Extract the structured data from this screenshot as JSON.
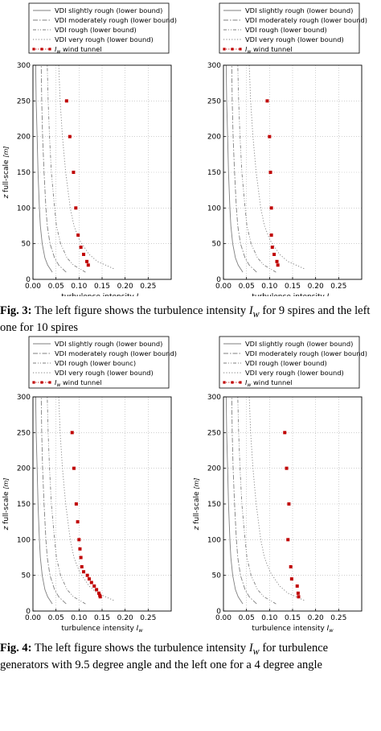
{
  "captions": {
    "fig3": {
      "label": "Fig. 3:",
      "text_a": "The left figure shows the turbulence intensity",
      "symbol": "I",
      "subscript": "w",
      "text_b": "for 9 spires and the left one for 10 spires"
    },
    "fig4": {
      "label": "Fig. 4:",
      "text_a": "The left figure shows the turbulence intensity",
      "symbol": "I",
      "subscript": "w",
      "text_b": "for turbulence generators with 9.5 degree angle and the left one for a 4 degree angle"
    }
  },
  "colors": {
    "vdi": "#7f7f7f",
    "tunnel": "#c00000",
    "grid": "#b0b0b0",
    "axis": "#000000"
  },
  "chart_data": [
    {
      "type": "line",
      "xlabel": "turbulence intensity I_w",
      "ylabel": "z full-scale [m]",
      "xlim": [
        0.0,
        0.3
      ],
      "ylim": [
        0,
        300
      ],
      "xticks": [
        "0.00",
        "0.05",
        "0.10",
        "0.15",
        "0.20",
        "0.25"
      ],
      "yticks": [
        "0",
        "50",
        "100",
        "150",
        "200",
        "250",
        "300"
      ],
      "grid": true,
      "legend_position": "top",
      "legend": [
        "VDI slightly rough (lower bound)",
        "VDI moderately rough (lower bound)",
        "VDI rough (lower bound)",
        "VDI very rough (lower bound)",
        "I_w wind tunnel"
      ],
      "series": [
        {
          "name": "VDI slightly rough (lower bound)",
          "style": "solid",
          "x": [
            0.042,
            0.032,
            0.026,
            0.02,
            0.016,
            0.014,
            0.011,
            0.009,
            0.007,
            0.006
          ],
          "y": [
            10,
            20,
            30,
            50,
            75,
            100,
            150,
            200,
            250,
            300
          ]
        },
        {
          "name": "VDI moderately rough (lower bound)",
          "style": "dashdot",
          "x": [
            0.072,
            0.056,
            0.047,
            0.037,
            0.031,
            0.028,
            0.024,
            0.021,
            0.019,
            0.018
          ],
          "y": [
            10,
            20,
            30,
            50,
            75,
            100,
            150,
            200,
            250,
            300
          ]
        },
        {
          "name": "VDI rough (lower bound)",
          "style": "dashdotdot",
          "x": [
            0.114,
            0.088,
            0.074,
            0.06,
            0.051,
            0.047,
            0.04,
            0.036,
            0.033,
            0.031
          ],
          "y": [
            10,
            20,
            30,
            50,
            75,
            100,
            150,
            200,
            250,
            300
          ]
        },
        {
          "name": "VDI very rough (lower bound)",
          "style": "dotted",
          "x": [
            0.175,
            0.14,
            0.122,
            0.101,
            0.089,
            0.081,
            0.071,
            0.064,
            0.059,
            0.056
          ],
          "y": [
            15,
            25,
            35,
            55,
            75,
            100,
            150,
            200,
            250,
            300
          ]
        },
        {
          "name": "I_w wind tunnel",
          "style": "marker",
          "x": [
            0.12,
            0.117,
            0.11,
            0.104,
            0.098,
            0.093,
            0.088,
            0.08,
            0.073
          ],
          "y": [
            20,
            25,
            35,
            45,
            62,
            100,
            150,
            200,
            250
          ]
        }
      ]
    },
    {
      "type": "line",
      "xlabel": "turbulence intensity I_w",
      "ylabel": "",
      "xlim": [
        0.0,
        0.3
      ],
      "ylim": [
        0,
        300
      ],
      "xticks": [
        "0.00",
        "0.05",
        "0.10",
        "0.15",
        "0.20",
        "0.25"
      ],
      "yticks": [
        "0",
        "50",
        "100",
        "150",
        "200",
        "250",
        "300"
      ],
      "grid": true,
      "legend_position": "top",
      "legend": [
        "VDI slightly rough (lower bound)",
        "VDI moderately rough (lower bound)",
        "VDI rough (lower bound)",
        "VDI very rough (lower bound)",
        "I_w wind tunnel"
      ],
      "series": [
        {
          "name": "VDI slightly rough (lower bound)",
          "style": "solid",
          "x": [
            0.042,
            0.032,
            0.026,
            0.02,
            0.016,
            0.014,
            0.011,
            0.009,
            0.007,
            0.006
          ],
          "y": [
            10,
            20,
            30,
            50,
            75,
            100,
            150,
            200,
            250,
            300
          ]
        },
        {
          "name": "VDI moderately rough (lower bound)",
          "style": "dashdot",
          "x": [
            0.072,
            0.056,
            0.047,
            0.037,
            0.031,
            0.028,
            0.024,
            0.021,
            0.019,
            0.018
          ],
          "y": [
            10,
            20,
            30,
            50,
            75,
            100,
            150,
            200,
            250,
            300
          ]
        },
        {
          "name": "VDI rough (lower bound)",
          "style": "dashdotdot",
          "x": [
            0.114,
            0.088,
            0.074,
            0.06,
            0.051,
            0.047,
            0.04,
            0.036,
            0.033,
            0.031
          ],
          "y": [
            10,
            20,
            30,
            50,
            75,
            100,
            150,
            200,
            250,
            300
          ]
        },
        {
          "name": "VDI very rough (lower bound)",
          "style": "dotted",
          "x": [
            0.175,
            0.14,
            0.122,
            0.101,
            0.089,
            0.081,
            0.071,
            0.064,
            0.059,
            0.056
          ],
          "y": [
            15,
            25,
            35,
            55,
            75,
            100,
            150,
            200,
            250,
            300
          ]
        },
        {
          "name": "I_w wind tunnel",
          "style": "marker",
          "x": [
            0.118,
            0.116,
            0.11,
            0.106,
            0.104,
            0.104,
            0.102,
            0.1,
            0.095
          ],
          "y": [
            20,
            25,
            35,
            45,
            62,
            100,
            150,
            200,
            250
          ]
        }
      ]
    },
    {
      "type": "line",
      "xlabel": "turbulence intensity I_w",
      "ylabel": "z full-scale [m]",
      "xlim": [
        0.0,
        0.3
      ],
      "ylim": [
        0,
        300
      ],
      "xticks": [
        "0.00",
        "0.05",
        "0.10",
        "0.15",
        "0.20",
        "0.25"
      ],
      "yticks": [
        "0",
        "50",
        "100",
        "150",
        "200",
        "250",
        "300"
      ],
      "grid": true,
      "legend_position": "top",
      "legend": [
        "VDI slightly rough (lower bound)",
        "VDI moderately rough (lower bound)",
        "VDI rough (lower bounc)",
        "VDI very rough (lower bound)",
        "I_w wind tunnel"
      ],
      "series": [
        {
          "name": "VDI slightly rough (lower bound)",
          "style": "solid",
          "x": [
            0.042,
            0.032,
            0.026,
            0.02,
            0.016,
            0.014,
            0.011,
            0.009,
            0.007,
            0.006
          ],
          "y": [
            10,
            20,
            30,
            50,
            75,
            100,
            150,
            200,
            250,
            300
          ]
        },
        {
          "name": "VDI moderately rough (lower bound)",
          "style": "dashdot",
          "x": [
            0.072,
            0.056,
            0.047,
            0.037,
            0.031,
            0.028,
            0.024,
            0.021,
            0.019,
            0.018
          ],
          "y": [
            10,
            20,
            30,
            50,
            75,
            100,
            150,
            200,
            250,
            300
          ]
        },
        {
          "name": "VDI rough (lower bounc)",
          "style": "dashdotdot",
          "x": [
            0.114,
            0.088,
            0.074,
            0.06,
            0.051,
            0.047,
            0.04,
            0.036,
            0.033,
            0.031
          ],
          "y": [
            10,
            20,
            30,
            50,
            75,
            100,
            150,
            200,
            250,
            300
          ]
        },
        {
          "name": "VDI very rough (lower bound)",
          "style": "dotted",
          "x": [
            0.175,
            0.14,
            0.122,
            0.101,
            0.089,
            0.081,
            0.071,
            0.064,
            0.059,
            0.056
          ],
          "y": [
            15,
            25,
            35,
            55,
            75,
            100,
            150,
            200,
            250,
            300
          ]
        },
        {
          "name": "I_w wind tunnel",
          "style": "marker",
          "x": [
            0.146,
            0.145,
            0.143,
            0.138,
            0.133,
            0.127,
            0.122,
            0.118,
            0.11,
            0.106,
            0.104,
            0.102,
            0.1,
            0.097,
            0.094,
            0.089,
            0.085
          ],
          "y": [
            20,
            22,
            25,
            30,
            35,
            40,
            45,
            50,
            55,
            62,
            75,
            87,
            100,
            125,
            150,
            200,
            250
          ]
        }
      ]
    },
    {
      "type": "line",
      "xlabel": "turbulence intensity I_w",
      "ylabel": "z full-scale [m]",
      "xlim": [
        0.0,
        0.3
      ],
      "ylim": [
        0,
        300
      ],
      "xticks": [
        "0.00",
        "0.05",
        "0.10",
        "0.15",
        "0.20",
        "0.25"
      ],
      "yticks": [
        "0",
        "50",
        "100",
        "150",
        "200",
        "250",
        "300"
      ],
      "grid": true,
      "legend_position": "top",
      "legend": [
        "VDI slightly rough (lower bound)",
        "VDI moderately rough (lower bound)",
        "VDI rough (lower bound)",
        "VDI very rough (lower bound)",
        "I_w wind tunnel"
      ],
      "series": [
        {
          "name": "VDI slightly rough (lower bound)",
          "style": "solid",
          "x": [
            0.042,
            0.032,
            0.026,
            0.02,
            0.016,
            0.014,
            0.011,
            0.009,
            0.007,
            0.006
          ],
          "y": [
            10,
            20,
            30,
            50,
            75,
            100,
            150,
            200,
            250,
            300
          ]
        },
        {
          "name": "VDI moderately rough (lower bound)",
          "style": "dashdot",
          "x": [
            0.072,
            0.056,
            0.047,
            0.037,
            0.031,
            0.028,
            0.024,
            0.021,
            0.019,
            0.018
          ],
          "y": [
            10,
            20,
            30,
            50,
            75,
            100,
            150,
            200,
            250,
            300
          ]
        },
        {
          "name": "VDI rough (lower bound)",
          "style": "dashdotdot",
          "x": [
            0.114,
            0.088,
            0.074,
            0.06,
            0.051,
            0.047,
            0.04,
            0.036,
            0.033,
            0.031
          ],
          "y": [
            10,
            20,
            30,
            50,
            75,
            100,
            150,
            200,
            250,
            300
          ]
        },
        {
          "name": "VDI very rough (lower bound)",
          "style": "dotted",
          "x": [
            0.175,
            0.14,
            0.122,
            0.101,
            0.089,
            0.081,
            0.071,
            0.064,
            0.059,
            0.056
          ],
          "y": [
            15,
            25,
            35,
            55,
            75,
            100,
            150,
            200,
            250,
            300
          ]
        },
        {
          "name": "I_w wind tunnel",
          "style": "marker",
          "x": [
            0.163,
            0.162,
            0.16,
            0.148,
            0.146,
            0.14,
            0.142,
            0.137,
            0.133
          ],
          "y": [
            20,
            25,
            35,
            45,
            62,
            100,
            150,
            200,
            250
          ]
        }
      ]
    }
  ]
}
